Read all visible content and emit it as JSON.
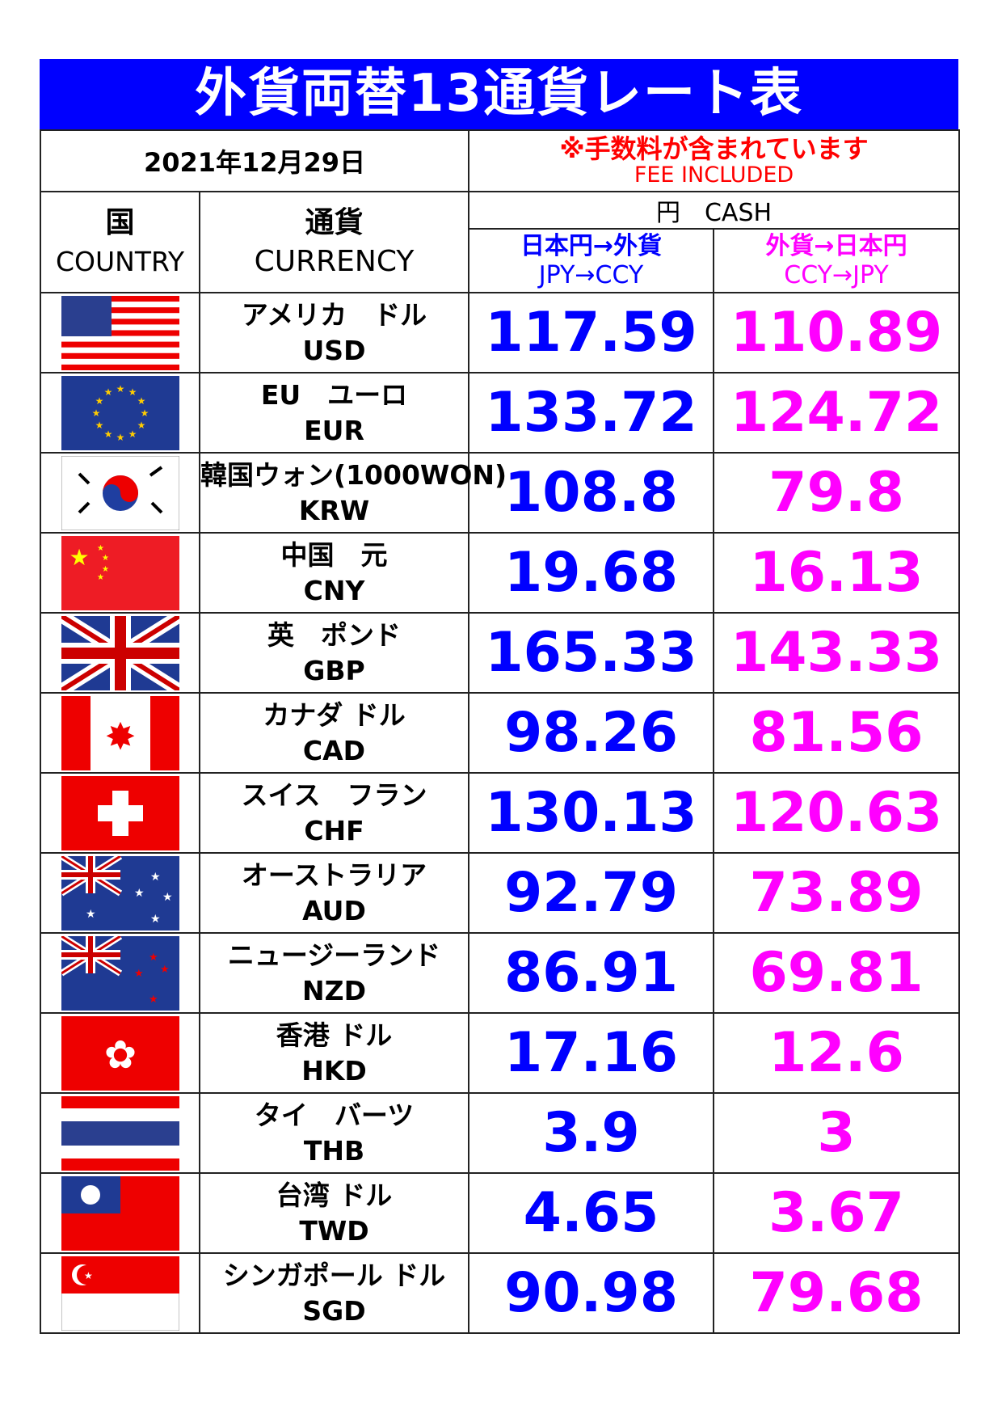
{
  "title": "外貨両替13通貨レート表",
  "date": "2021年12月29日",
  "fee_note_jp": "※手数料が含まれています",
  "fee_note_en": "FEE INCLUDED",
  "headers": {
    "country_jp": "国",
    "country_en": "COUNTRY",
    "currency_jp": "通貨",
    "currency_en": "CURRENCY",
    "cash": "円　CASH",
    "buy_jp": "日本円→外貨",
    "buy_en": "JPY→CCY",
    "sell_jp": "外貨→日本円",
    "sell_en": "CCY→JPY"
  },
  "colors": {
    "title_bg": "#0000ff",
    "buy": "#0000ff",
    "sell": "#ff00ff",
    "fee": "#ff0000"
  },
  "rows": [
    {
      "flag": "usa-flag",
      "name": "アメリカ　ドル",
      "code": "USD",
      "buy": "117.59",
      "sell": "110.89"
    },
    {
      "flag": "eu-flag",
      "name": "EU　ユーロ",
      "code": "EUR",
      "buy": "133.72",
      "sell": "124.72"
    },
    {
      "flag": "korea-flag",
      "name": "韓国ウォン(1000WON)",
      "code": "KRW",
      "buy": "108.8",
      "sell": "79.8"
    },
    {
      "flag": "china-flag",
      "name": "中国　元",
      "code": "CNY",
      "buy": "19.68",
      "sell": "16.13"
    },
    {
      "flag": "uk-flag",
      "name": "英　ポンド",
      "code": "GBP",
      "buy": "165.33",
      "sell": "143.33"
    },
    {
      "flag": "canada-flag",
      "name": "カナダ ドル",
      "code": "CAD",
      "buy": "98.26",
      "sell": "81.56"
    },
    {
      "flag": "swiss-flag",
      "name": "スイス　フラン",
      "code": "CHF",
      "buy": "130.13",
      "sell": "120.63"
    },
    {
      "flag": "australia-flag",
      "name": "オーストラリア",
      "code": "AUD",
      "buy": "92.79",
      "sell": "73.89"
    },
    {
      "flag": "newzealand-flag",
      "name": "ニュージーランド",
      "code": "NZD",
      "buy": "86.91",
      "sell": "69.81"
    },
    {
      "flag": "hongkong-flag",
      "name": "香港 ドル",
      "code": "HKD",
      "buy": "17.16",
      "sell": "12.6"
    },
    {
      "flag": "thailand-flag",
      "name": "タイ　バーツ",
      "code": "THB",
      "buy": "3.9",
      "sell": "3"
    },
    {
      "flag": "taiwan-flag",
      "name": "台湾 ドル",
      "code": "TWD",
      "buy": "4.65",
      "sell": "3.67"
    },
    {
      "flag": "singapore-flag",
      "name": "シンガポール ドル",
      "code": "SGD",
      "buy": "90.98",
      "sell": "79.68"
    }
  ]
}
